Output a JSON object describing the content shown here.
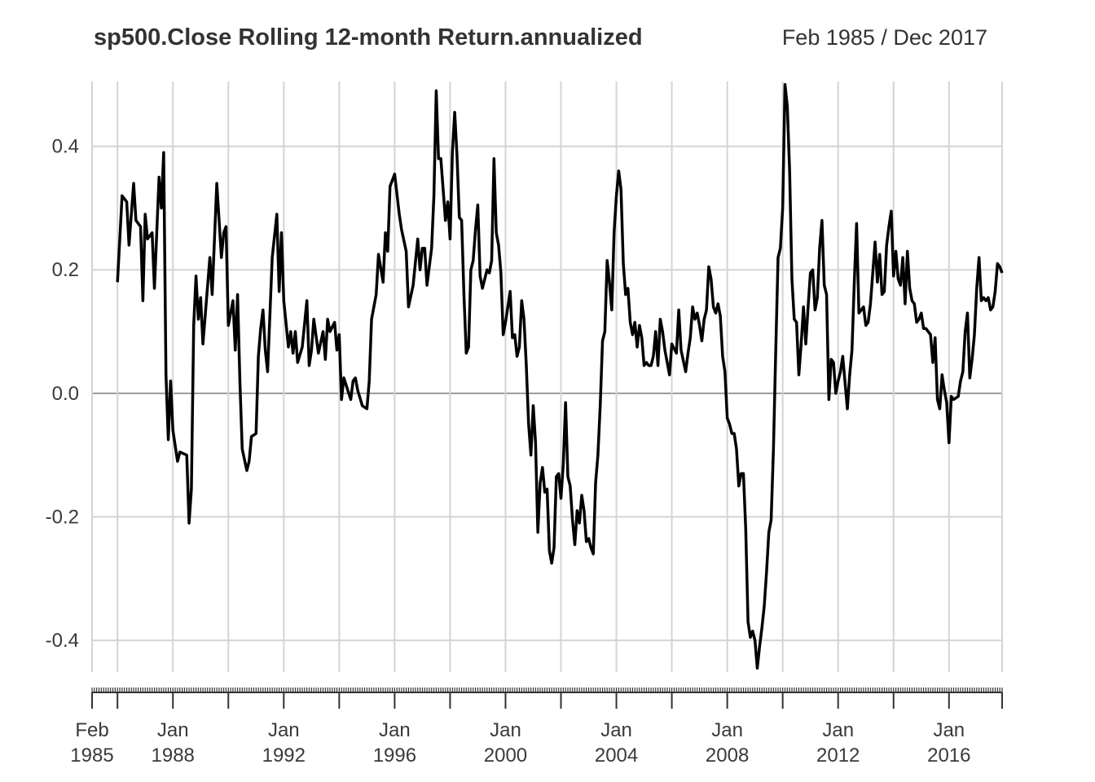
{
  "chart_data": {
    "type": "line",
    "title": "sp500.Close Rolling 12-month Return.annualized",
    "subtitle": "Feb 1985 / Dec 2017",
    "color": "#000000",
    "grid": true,
    "x": [
      "1986-01",
      "1986-03",
      "1986-05",
      "1986-06",
      "1986-08",
      "1986-09",
      "1986-11",
      "1986-12",
      "1987-01",
      "1987-02",
      "1987-04",
      "1987-05",
      "1987-07",
      "1987-08",
      "1987-09",
      "1987-10",
      "1987-11",
      "1987-12",
      "1988-01",
      "1988-03",
      "1988-04",
      "1988-07",
      "1988-08",
      "1988-09",
      "1988-10",
      "1988-11",
      "1988-12",
      "1989-01",
      "1989-02",
      "1989-05",
      "1989-06",
      "1989-08",
      "1989-10",
      "1989-11",
      "1989-12",
      "1990-01",
      "1990-03",
      "1990-04",
      "1990-05",
      "1990-06",
      "1990-07",
      "1990-09",
      "1990-10",
      "1990-11",
      "1991-01",
      "1991-02",
      "1991-03",
      "1991-04",
      "1991-05",
      "1991-06",
      "1991-08",
      "1991-10",
      "1991-11",
      "1991-12",
      "1992-01",
      "1992-03",
      "1992-04",
      "1992-05",
      "1992-06",
      "1992-07",
      "1992-09",
      "1992-11",
      "1992-12",
      "1993-01",
      "1993-02",
      "1993-04",
      "1993-06",
      "1993-07",
      "1993-08",
      "1993-09",
      "1993-11",
      "1993-12",
      "1994-01",
      "1994-02",
      "1994-03",
      "1994-06",
      "1994-07",
      "1994-08",
      "1994-09",
      "1994-11",
      "1995-01",
      "1995-02",
      "1995-03",
      "1995-05",
      "1995-06",
      "1995-08",
      "1995-09",
      "1995-10",
      "1995-11",
      "1996-01",
      "1996-03",
      "1996-04",
      "1996-06",
      "1996-07",
      "1996-09",
      "1996-11",
      "1996-12",
      "1997-01",
      "1997-02",
      "1997-03",
      "1997-05",
      "1997-06",
      "1997-07",
      "1997-08",
      "1997-09",
      "1997-11",
      "1997-12",
      "1998-01",
      "1998-02",
      "1998-03",
      "1998-04",
      "1998-05",
      "1998-06",
      "1998-07",
      "1998-08",
      "1998-09",
      "1998-10",
      "1998-11",
      "1998-12",
      "1999-01",
      "1999-02",
      "1999-03",
      "1999-05",
      "1999-06",
      "1999-07",
      "1999-08",
      "1999-09",
      "1999-10",
      "1999-11",
      "1999-12",
      "2000-01",
      "2000-03",
      "2000-04",
      "2000-05",
      "2000-06",
      "2000-07",
      "2000-08",
      "2000-09",
      "2000-10",
      "2000-11",
      "2000-12",
      "2001-01",
      "2001-02",
      "2001-03",
      "2001-04",
      "2001-05",
      "2001-06",
      "2001-07",
      "2001-08",
      "2001-09",
      "2001-10",
      "2001-11",
      "2001-12",
      "2002-01",
      "2002-02",
      "2002-03",
      "2002-04",
      "2002-05",
      "2002-06",
      "2002-07",
      "2002-08",
      "2002-09",
      "2002-10",
      "2002-11",
      "2002-12",
      "2003-01",
      "2003-02",
      "2003-03",
      "2003-04",
      "2003-05",
      "2003-06",
      "2003-07",
      "2003-08",
      "2003-09",
      "2003-10",
      "2003-11",
      "2003-12",
      "2004-01",
      "2004-02",
      "2004-03",
      "2004-04",
      "2004-05",
      "2004-06",
      "2004-07",
      "2004-08",
      "2004-09",
      "2004-10",
      "2004-11",
      "2004-12",
      "2005-01",
      "2005-02",
      "2005-03",
      "2005-04",
      "2005-05",
      "2005-06",
      "2005-07",
      "2005-08",
      "2005-09",
      "2005-10",
      "2005-12",
      "2006-01",
      "2006-03",
      "2006-04",
      "2006-05",
      "2006-07",
      "2006-08",
      "2006-09",
      "2006-10",
      "2006-11",
      "2006-12",
      "2007-01",
      "2007-02",
      "2007-03",
      "2007-04",
      "2007-05",
      "2007-06",
      "2007-07",
      "2007-08",
      "2007-09",
      "2007-10",
      "2007-11",
      "2007-12",
      "2008-01",
      "2008-02",
      "2008-03",
      "2008-04",
      "2008-05",
      "2008-06",
      "2008-07",
      "2008-08",
      "2008-09",
      "2008-10",
      "2008-11",
      "2008-12",
      "2009-01",
      "2009-02",
      "2009-03",
      "2009-04",
      "2009-05",
      "2009-06",
      "2009-07",
      "2009-08",
      "2009-09",
      "2009-10",
      "2009-11",
      "2009-12",
      "2010-01",
      "2010-02",
      "2010-03",
      "2010-04",
      "2010-05",
      "2010-06",
      "2010-07",
      "2010-08",
      "2010-09",
      "2010-10",
      "2010-11",
      "2010-12",
      "2011-01",
      "2011-02",
      "2011-03",
      "2011-04",
      "2011-05",
      "2011-06",
      "2011-07",
      "2011-08",
      "2011-09",
      "2011-10",
      "2011-11",
      "2011-12",
      "2012-01",
      "2012-02",
      "2012-03",
      "2012-05",
      "2012-06",
      "2012-07",
      "2012-08",
      "2012-09",
      "2012-10",
      "2012-11",
      "2012-12",
      "2013-01",
      "2013-02",
      "2013-03",
      "2013-05",
      "2013-06",
      "2013-07",
      "2013-08",
      "2013-09",
      "2013-10",
      "2013-11",
      "2013-12",
      "2014-01",
      "2014-02",
      "2014-03",
      "2014-04",
      "2014-05",
      "2014-06",
      "2014-07",
      "2014-08",
      "2014-09",
      "2014-10",
      "2014-11",
      "2014-12",
      "2015-01",
      "2015-02",
      "2015-03",
      "2015-05",
      "2015-06",
      "2015-07",
      "2015-08",
      "2015-09",
      "2015-10",
      "2015-11",
      "2015-12",
      "2016-01",
      "2016-02",
      "2016-03",
      "2016-05",
      "2016-06",
      "2016-07",
      "2016-08",
      "2016-09",
      "2016-10",
      "2016-11",
      "2016-12",
      "2017-01",
      "2017-02",
      "2017-03",
      "2017-04",
      "2017-05",
      "2017-06",
      "2017-07",
      "2017-08",
      "2017-09",
      "2017-10",
      "2017-11",
      "2017-12"
    ],
    "values": [
      0.18,
      0.32,
      0.31,
      0.24,
      0.34,
      0.28,
      0.27,
      0.15,
      0.29,
      0.25,
      0.26,
      0.17,
      0.35,
      0.3,
      0.39,
      0.03,
      -0.075,
      0.02,
      -0.06,
      -0.11,
      -0.095,
      -0.1,
      -0.21,
      -0.155,
      0.11,
      0.19,
      0.12,
      0.155,
      0.08,
      0.22,
      0.16,
      0.34,
      0.22,
      0.26,
      0.27,
      0.11,
      0.15,
      0.07,
      0.16,
      0.02,
      -0.09,
      -0.125,
      -0.11,
      -0.07,
      -0.065,
      0.06,
      0.105,
      0.135,
      0.07,
      0.035,
      0.22,
      0.29,
      0.165,
      0.26,
      0.15,
      0.075,
      0.1,
      0.065,
      0.1,
      0.05,
      0.075,
      0.15,
      0.045,
      0.07,
      0.12,
      0.065,
      0.1,
      0.055,
      0.12,
      0.1,
      0.115,
      0.07,
      0.095,
      -0.01,
      0.025,
      -0.01,
      0.02,
      0.025,
      0.005,
      -0.02,
      -0.025,
      0.02,
      0.12,
      0.16,
      0.225,
      0.18,
      0.26,
      0.23,
      0.335,
      0.355,
      0.29,
      0.265,
      0.23,
      0.14,
      0.175,
      0.25,
      0.2,
      0.235,
      0.235,
      0.175,
      0.235,
      0.32,
      0.49,
      0.38,
      0.38,
      0.28,
      0.31,
      0.25,
      0.39,
      0.455,
      0.385,
      0.285,
      0.28,
      0.16,
      0.065,
      0.075,
      0.2,
      0.215,
      0.265,
      0.305,
      0.19,
      0.17,
      0.2,
      0.195,
      0.215,
      0.38,
      0.26,
      0.24,
      0.195,
      0.095,
      0.115,
      0.165,
      0.09,
      0.095,
      0.06,
      0.075,
      0.15,
      0.12,
      0.045,
      -0.05,
      -0.1,
      -0.02,
      -0.08,
      -0.225,
      -0.145,
      -0.12,
      -0.16,
      -0.155,
      -0.255,
      -0.275,
      -0.25,
      -0.135,
      -0.13,
      -0.17,
      -0.115,
      -0.015,
      -0.135,
      -0.15,
      -0.205,
      -0.245,
      -0.19,
      -0.21,
      -0.165,
      -0.19,
      -0.24,
      -0.235,
      -0.25,
      -0.26,
      -0.145,
      -0.1,
      -0.02,
      0.085,
      0.1,
      0.215,
      0.18,
      0.135,
      0.26,
      0.32,
      0.36,
      0.33,
      0.21,
      0.16,
      0.17,
      0.115,
      0.095,
      0.115,
      0.075,
      0.11,
      0.09,
      0.045,
      0.05,
      0.045,
      0.045,
      0.06,
      0.1,
      0.045,
      0.12,
      0.1,
      0.07,
      0.03,
      0.08,
      0.065,
      0.135,
      0.07,
      0.035,
      0.065,
      0.09,
      0.14,
      0.12,
      0.13,
      0.11,
      0.085,
      0.12,
      0.135,
      0.205,
      0.185,
      0.14,
      0.13,
      0.145,
      0.125,
      0.06,
      0.035,
      -0.04,
      -0.05,
      -0.065,
      -0.065,
      -0.09,
      -0.15,
      -0.13,
      -0.13,
      -0.22,
      -0.37,
      -0.395,
      -0.385,
      -0.4,
      -0.445,
      -0.41,
      -0.38,
      -0.345,
      -0.29,
      -0.225,
      -0.205,
      -0.09,
      0.07,
      0.22,
      0.235,
      0.3,
      0.5,
      0.465,
      0.36,
      0.185,
      0.12,
      0.115,
      0.03,
      0.08,
      0.14,
      0.08,
      0.14,
      0.195,
      0.2,
      0.135,
      0.155,
      0.235,
      0.28,
      0.175,
      0.16,
      -0.01,
      0.055,
      0.05,
      0.0,
      0.02,
      0.035,
      0.06,
      -0.025,
      0.03,
      0.07,
      0.18,
      0.275,
      0.13,
      0.135,
      0.14,
      0.11,
      0.115,
      0.145,
      0.245,
      0.18,
      0.225,
      0.16,
      0.165,
      0.24,
      0.27,
      0.295,
      0.19,
      0.23,
      0.185,
      0.175,
      0.22,
      0.145,
      0.23,
      0.17,
      0.15,
      0.145,
      0.115,
      0.12,
      0.13,
      0.105,
      0.105,
      0.095,
      0.05,
      0.09,
      -0.01,
      -0.025,
      0.03,
      0.005,
      -0.015,
      -0.08,
      -0.005,
      -0.01,
      -0.005,
      0.02,
      0.035,
      0.1,
      0.13,
      0.025,
      0.055,
      0.095,
      0.17,
      0.22,
      0.15,
      0.155,
      0.15,
      0.155,
      0.135,
      0.14,
      0.165,
      0.21,
      0.205,
      0.195
    ],
    "xlim": [
      "1985-02",
      "2017-12"
    ],
    "xticks": [
      {
        "value": "1985-02",
        "label": "Feb 1985"
      },
      {
        "value": "1986-01",
        "label": null
      },
      {
        "value": "1988-01",
        "label": "Jan 1988"
      },
      {
        "value": "1990-01",
        "label": null
      },
      {
        "value": "1992-01",
        "label": "Jan 1992"
      },
      {
        "value": "1994-01",
        "label": null
      },
      {
        "value": "1996-01",
        "label": "Jan 1996"
      },
      {
        "value": "1998-01",
        "label": null
      },
      {
        "value": "2000-01",
        "label": "Jan 2000"
      },
      {
        "value": "2002-01",
        "label": null
      },
      {
        "value": "2004-01",
        "label": "Jan 2004"
      },
      {
        "value": "2006-01",
        "label": null
      },
      {
        "value": "2008-01",
        "label": "Jan 2008"
      },
      {
        "value": "2010-01",
        "label": null
      },
      {
        "value": "2012-01",
        "label": "Jan 2012"
      },
      {
        "value": "2014-01",
        "label": null
      },
      {
        "value": "2016-01",
        "label": "Jan 2016"
      },
      {
        "value": "2017-12",
        "label": null
      }
    ],
    "ylim": [
      -0.475,
      0.505
    ],
    "yticks": [
      -0.4,
      -0.2,
      {
        "value": 0,
        "label": "0.0"
      },
      0.2,
      0.4
    ]
  }
}
